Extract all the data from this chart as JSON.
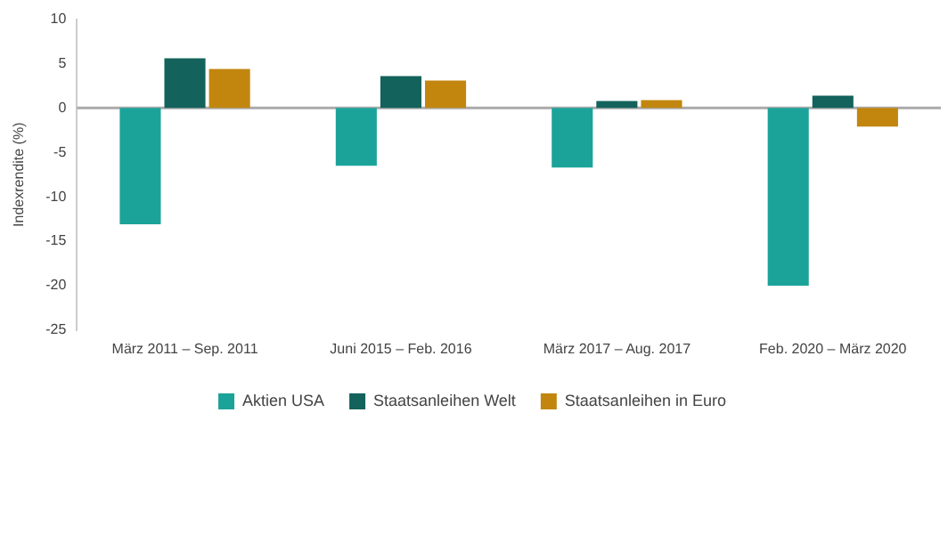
{
  "chart_data": {
    "type": "bar",
    "ylabel": "Indexrendite (%)",
    "categories": [
      "März 2011 – Sep. 2011",
      "Juni 2015 – Feb. 2016",
      "März 2017 – Aug. 2017",
      "Feb. 2020 – März 2020"
    ],
    "series": [
      {
        "name": "Aktien USA",
        "color": "#1ba39a",
        "values": [
          -13.1,
          -6.5,
          -6.7,
          -20
        ]
      },
      {
        "name": "Staatsanleihen Welt",
        "color": "#13625b",
        "values": [
          5.6,
          3.6,
          0.8,
          1.4
        ]
      },
      {
        "name": "Staatsanleihen in Euro",
        "color": "#c2860f",
        "values": [
          4.4,
          3.1,
          0.9,
          -2.1
        ]
      }
    ],
    "ylim": [
      -25,
      10
    ],
    "yticks": [
      -25,
      -20,
      -15,
      -10,
      -5,
      0,
      5,
      10
    ],
    "grid": false,
    "ref_lines": [
      {
        "axis": "y",
        "value": 0,
        "color": "#aaaaaa"
      }
    ],
    "legend": "bottom"
  }
}
